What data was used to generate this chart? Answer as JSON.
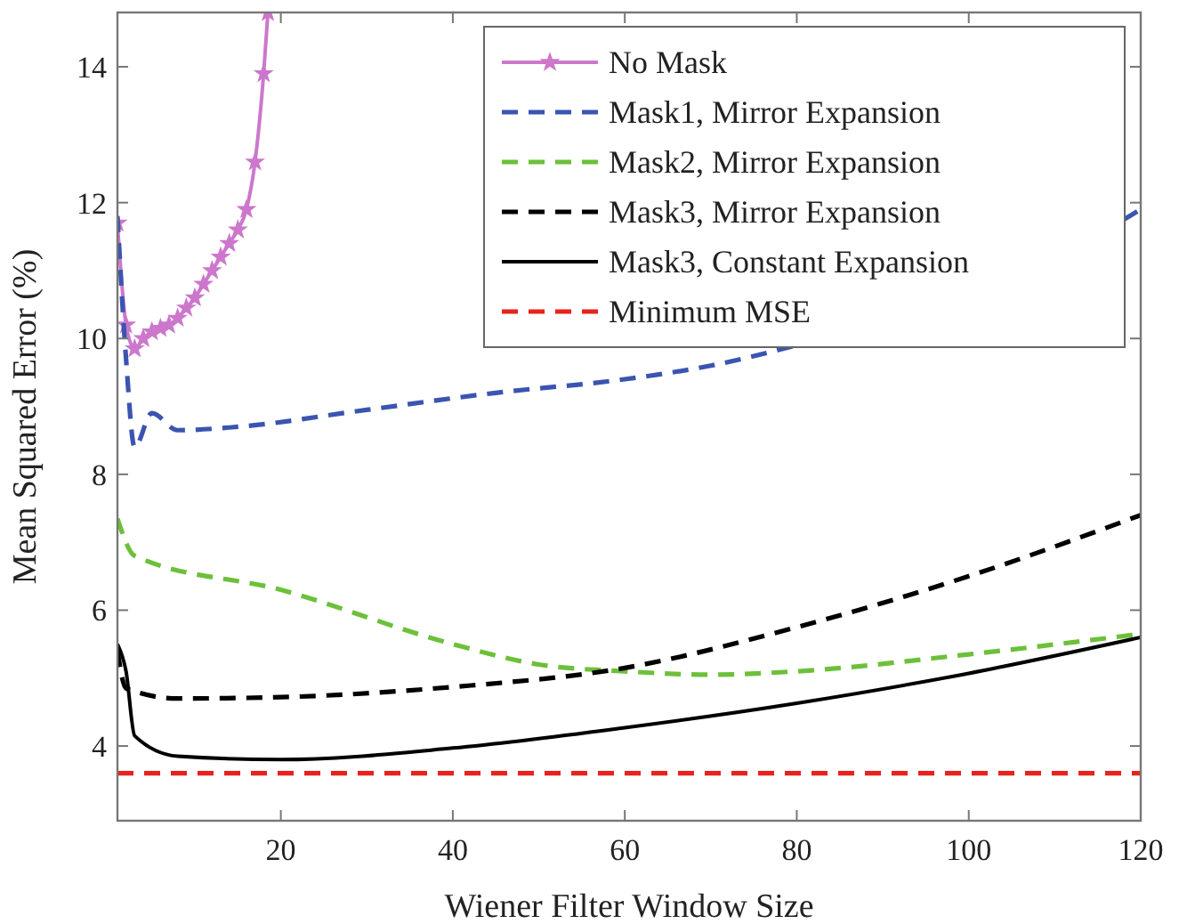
{
  "chart_data": {
    "type": "line",
    "xlabel": "Wiener Filter Window Size",
    "ylabel": "Mean Squared Error (%)",
    "xlim": [
      1,
      120
    ],
    "ylim": [
      2.9,
      14.8
    ],
    "xticks": [
      20,
      40,
      60,
      80,
      100,
      120
    ],
    "yticks": [
      4,
      6,
      8,
      10,
      12,
      14
    ],
    "grid": false,
    "legend": "top right",
    "series": [
      {
        "name": "No Mask",
        "color": "#cc77cc",
        "marker": "star",
        "line_style": "solid",
        "x": [
          1,
          2,
          3,
          4,
          5,
          6,
          7,
          8,
          9,
          10,
          11,
          12,
          13,
          14,
          15,
          16,
          17,
          18,
          18.5
        ],
        "values": [
          11.7,
          10.2,
          9.85,
          10.0,
          10.1,
          10.15,
          10.2,
          10.3,
          10.45,
          10.6,
          10.8,
          11.0,
          11.2,
          11.4,
          11.6,
          11.9,
          12.6,
          13.9,
          14.8
        ]
      },
      {
        "name": "Mask1, Mirror Expansion",
        "color": "#3a55b0",
        "line_style": "dashed",
        "x": [
          1,
          2,
          3,
          5,
          8,
          15,
          30,
          45,
          60,
          70,
          80,
          90,
          100,
          110,
          118,
          120
        ],
        "values": [
          11.8,
          9.7,
          8.4,
          8.9,
          8.65,
          8.7,
          8.95,
          9.2,
          9.4,
          9.6,
          9.9,
          null,
          null,
          null,
          11.75,
          11.9
        ]
      },
      {
        "name": "Mask2, Mirror Expansion",
        "color": "#6cc03a",
        "line_style": "dashed",
        "x": [
          1,
          3,
          20,
          40,
          50,
          60,
          70,
          80,
          100,
          120
        ],
        "values": [
          7.35,
          6.8,
          6.3,
          5.5,
          5.2,
          5.1,
          5.05,
          5.1,
          5.35,
          5.65
        ]
      },
      {
        "name": "Mask3, Mirror Expansion",
        "color": "#000000",
        "line_style": "dashed",
        "x": [
          1,
          2,
          8,
          20,
          40,
          60,
          80,
          100,
          120
        ],
        "values": [
          5.4,
          4.85,
          4.7,
          4.72,
          4.87,
          5.15,
          5.75,
          6.5,
          7.4
        ]
      },
      {
        "name": "Mask3, Constant Expansion",
        "color": "#000000",
        "line_style": "solid",
        "x": [
          1,
          2,
          3,
          8,
          20,
          40,
          60,
          80,
          100,
          120
        ],
        "values": [
          5.5,
          5.1,
          4.15,
          3.85,
          3.8,
          3.97,
          4.27,
          4.63,
          5.07,
          5.6
        ]
      },
      {
        "name": "Minimum MSE",
        "color": "#e8221c",
        "line_style": "dashed",
        "x": [
          1,
          120
        ],
        "values": [
          3.6,
          3.6
        ]
      }
    ]
  }
}
